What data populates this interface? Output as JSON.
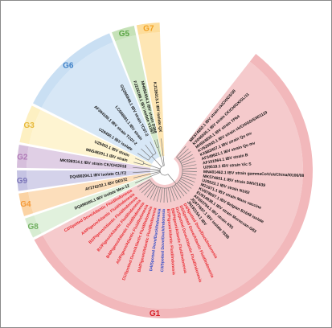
{
  "groups": [
    {
      "id": "G1",
      "label": "G1",
      "color": "#f2b8bb",
      "label_color": "#d7222a"
    },
    {
      "id": "G2",
      "label": "G2",
      "color": "#d6bfdc",
      "label_color": "#b07ab7"
    },
    {
      "id": "G3",
      "label": "G3",
      "color": "#fdf0c2",
      "label_color": "#e8b93c"
    },
    {
      "id": "G4",
      "label": "G4",
      "color": "#fbd3a4",
      "label_color": "#f49a3a"
    },
    {
      "id": "G5",
      "label": "G5",
      "color": "#c6e2b8",
      "label_color": "#5aa545"
    },
    {
      "id": "G6",
      "label": "G6",
      "color": "#c9dff3",
      "label_color": "#3c7fc7"
    },
    {
      "id": "G7",
      "label": "G7",
      "color": "#fddd9b",
      "label_color": "#f2a021"
    },
    {
      "id": "G8",
      "label": "G8",
      "color": "#d7ecd1",
      "label_color": "#72b062"
    },
    {
      "id": "G9",
      "label": "G9",
      "color": "#c5c3e3",
      "label_color": "#7a74b8"
    }
  ],
  "colors": {
    "black": "#111111",
    "red": "#e8262d",
    "blue": "#2f49c6"
  },
  "leaves": [
    {
      "label": "MK574652.1 IBV strain ck/CH/GS/30",
      "group": "G1",
      "color": "black"
    },
    {
      "label": "KX046535.1 IBV strain CK/CH/GX/GL/11",
      "group": "G1",
      "color": "black"
    },
    {
      "label": "MH924830.1 IBV strain TP64",
      "group": "G1",
      "color": "black"
    },
    {
      "label": "KY626045.1 IBV strain ck/CH/GD/SW/1119",
      "group": "G1",
      "color": "black"
    },
    {
      "label": "KX883407.1 IBV strain Qu mv",
      "group": "G1",
      "color": "black"
    },
    {
      "label": "AF349621.1 IBV strain Qu mv",
      "group": "G1",
      "color": "black"
    },
    {
      "label": "AF151964.1 IBV strain B",
      "group": "G1",
      "color": "black"
    },
    {
      "label": "U29519.1 IBV strain Vic S",
      "group": "G1",
      "color": "black"
    },
    {
      "label": "MN401462.1 IBV strain gammaCoV/ck/China/I0106/08",
      "group": "G1",
      "color": "black"
    },
    {
      "label": "MK574651.1 IBV strain DMV/1639",
      "group": "G1",
      "color": "black"
    },
    {
      "label": "U29522.1 IBV strain N1/62",
      "group": "G1",
      "color": "black"
    },
    {
      "label": "M21971.1 IBV strain Mass vaccine",
      "group": "G1",
      "color": "black"
    },
    {
      "label": "KU978697.1 IBV Belgian B1648 isolate",
      "group": "G1",
      "color": "black"
    },
    {
      "label": "EU914938.1 IBV strain Moroccan-G83",
      "group": "G1",
      "color": "black"
    },
    {
      "label": "AF093794.1 IBV strain 4/91",
      "group": "G1",
      "color": "black"
    },
    {
      "label": "JQ977697.1 IBV isolate 793B",
      "group": "G1",
      "color": "black"
    },
    {
      "label": "JN192154.1 IBV",
      "group": "G1",
      "color": "black"
    },
    {
      "label": "D4/Spotted Dove/Duck/Indonesia",
      "group": "G1",
      "color": "red"
    },
    {
      "label": "D5/Spotted Dove/Atlantic Fluid/Indonesia",
      "group": "G1",
      "color": "red"
    },
    {
      "label": "D1/Spotted Dove/Atlantic Fluid/Indonesia",
      "group": "G1",
      "color": "red"
    },
    {
      "label": "B6/Pigeon/Atlantic Fluid/Indonesia",
      "group": "G1",
      "color": "red"
    },
    {
      "label": "B7/Pigeon/Atlantic Fluid/Indonesia",
      "group": "G1",
      "color": "red"
    },
    {
      "label": "C3/Spotted Dove/Duck/Indonesia",
      "group": "G1",
      "color": "blue"
    },
    {
      "label": "D4/Spotted Dove/Duck/Indonesia",
      "group": "G1",
      "color": "blue"
    },
    {
      "label": "B4/Pigeon/Atlantic Fluid/Indonesia",
      "group": "G1",
      "color": "red"
    },
    {
      "label": "D1/Spotted Dove/Atlantic Fluid/Indonesia",
      "group": "G1",
      "color": "red"
    },
    {
      "label": "A5/Pigeon/Atlantic Fluid/Indonesia",
      "group": "G1",
      "color": "red"
    },
    {
      "label": "B4/Pigeon/Atlantic Fluid/Indonesia",
      "group": "G1",
      "color": "red"
    },
    {
      "label": "B1/Pigeon/Atlantic Fluid/Indonesia",
      "group": "G1",
      "color": "red"
    },
    {
      "label": "B2/Pigeon/Atlantic Fluid/Indonesia",
      "group": "G1",
      "color": "red"
    },
    {
      "label": "A4/Pigeon/Atlantic Fluid/Indonesia",
      "group": "G1",
      "color": "red"
    },
    {
      "label": "C2/Spotted Dove/Atlantic Fluid/Indonesia",
      "group": "G1",
      "color": "red"
    },
    {
      "label": "DQ490205.1 IBV isolate Mex-12",
      "group": "G8",
      "color": "black"
    },
    {
      "label": "AY276232.1 IBV DE072",
      "group": "G4",
      "color": "black"
    },
    {
      "label": "DQ490204.1 IBV isolate CL/T2",
      "group": "G9",
      "color": "black"
    },
    {
      "label": "MK938314.1 IBV strain CK/CH/2018",
      "group": "G2",
      "color": "black"
    },
    {
      "label": "MN548291.1 IBV strain",
      "group": "G3",
      "color": "black"
    },
    {
      "label": "U29450.1 IBV strain",
      "group": "G3",
      "color": "black"
    },
    {
      "label": "U29450.1 IBV isolate",
      "group": "G6",
      "color": "black"
    },
    {
      "label": "AF394180.1 IBV strain TC07-2",
      "group": "G6",
      "color": "black"
    },
    {
      "label": "LC068081.1 IBV strain",
      "group": "G6",
      "color": "black"
    },
    {
      "label": "GQ265948.1 IBV strain TC07-2",
      "group": "G6",
      "color": "black"
    },
    {
      "label": "FJ226188.1 IBV isolate V1397",
      "group": "G5",
      "color": "black"
    },
    {
      "label": "MH892454.1 IBV strain D388",
      "group": "G5",
      "color": "black"
    },
    {
      "label": "KJ135013.1 IBV isolate QX",
      "group": "G7",
      "color": "black"
    }
  ]
}
